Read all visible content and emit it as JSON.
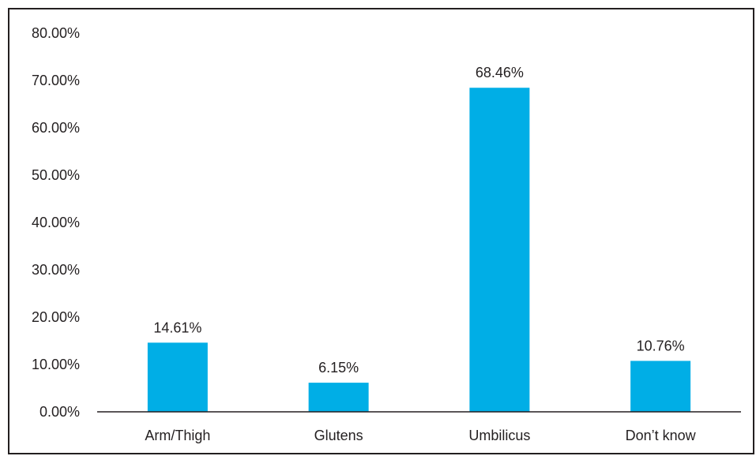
{
  "chart_data": {
    "type": "bar",
    "title": "",
    "xlabel": "",
    "ylabel": "",
    "categories": [
      "Arm/Thigh",
      "Glutens",
      "Umbilicus",
      "Don’t know"
    ],
    "values": [
      14.61,
      6.15,
      68.46,
      10.76
    ],
    "data_labels": [
      "14.61%",
      "6.15%",
      "68.46%",
      "10.76%"
    ],
    "ylim": [
      0,
      80
    ],
    "yticks": [
      0,
      10,
      20,
      30,
      40,
      50,
      60,
      70,
      80
    ],
    "ytick_labels": [
      "0.00%",
      "10.00%",
      "20.00%",
      "30.00%",
      "40.00%",
      "50.00%",
      "60.00%",
      "70.00%",
      "80.00%"
    ],
    "bar_color": "#00aee6",
    "axis_color": "#231f20",
    "grid": false,
    "legend": "none"
  }
}
